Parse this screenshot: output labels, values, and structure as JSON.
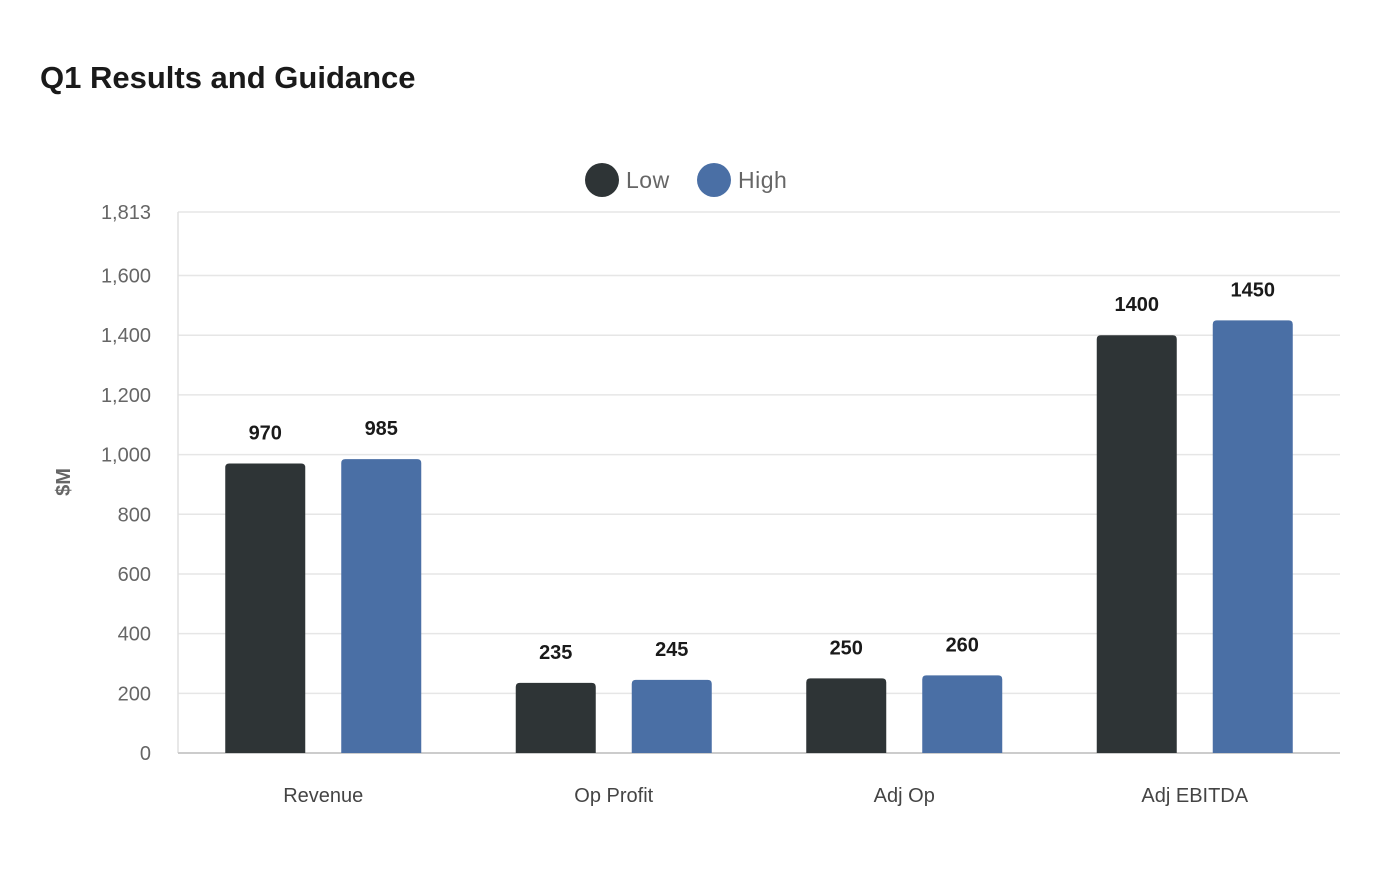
{
  "chart_data": {
    "type": "bar",
    "title": "Q1 Results and Guidance",
    "ylabel": "$M",
    "xlabel": "",
    "categories": [
      "Revenue",
      "Op Profit",
      "Adj Op",
      "Adj EBITDA"
    ],
    "series": [
      {
        "name": "Low",
        "values": [
          970,
          235,
          250,
          1400
        ],
        "color": "#2e3436"
      },
      {
        "name": "High",
        "values": [
          985,
          245,
          260,
          1450
        ],
        "color": "#4a6fa5"
      }
    ],
    "ylim": [
      0,
      1813
    ],
    "yticks": [
      0,
      200,
      400,
      600,
      800,
      1000,
      1200,
      1400,
      1600,
      1813
    ],
    "ytick_labels": [
      "0",
      "200",
      "400",
      "600",
      "800",
      "1,000",
      "1,200",
      "1,400",
      "1,600",
      "1,813"
    ],
    "grid": true,
    "legend_position": "top-center",
    "data_labels": true
  }
}
